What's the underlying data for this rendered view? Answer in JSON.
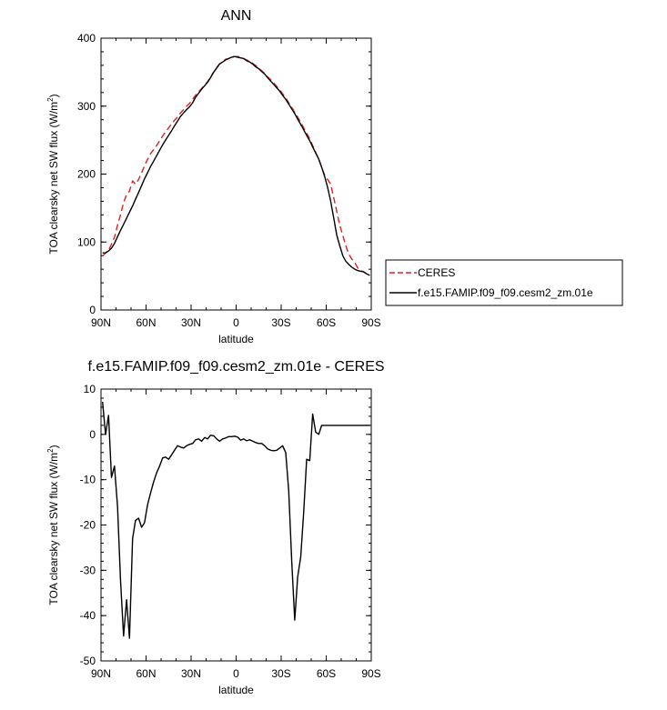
{
  "chart_data": [
    {
      "type": "line",
      "title": "ANN",
      "xlabel": "latitude",
      "ylabel_main": "TOA clearsky net SW flux (W/m",
      "ylabel_sup": "2",
      "ylabel_close": ")",
      "xlim": [
        -90,
        90
      ],
      "ylim": [
        0,
        400
      ],
      "xticks": [
        -90,
        -60,
        -30,
        0,
        30,
        60,
        90
      ],
      "xtick_labels": [
        "90N",
        "60N",
        "30N",
        "0",
        "30S",
        "60S",
        "90S"
      ],
      "yticks": [
        0,
        100,
        200,
        300,
        400
      ],
      "ytick_labels": [
        "0",
        "100",
        "200",
        "300",
        "400"
      ],
      "legend_placement": "right",
      "series": [
        {
          "name": "CERES",
          "color": "#e0201b",
          "dash": "dashed",
          "x": [
            -89,
            -87,
            -85,
            -83,
            -81,
            -79,
            -77,
            -75,
            -73,
            -71,
            -69,
            -67,
            -65,
            -63,
            -61,
            -59,
            -57,
            -55,
            -53,
            -51,
            -49,
            -47,
            -45,
            -43,
            -41,
            -39,
            -37,
            -35,
            -33,
            -31,
            -29,
            -27,
            -25,
            -23,
            -21,
            -19,
            -17,
            -15,
            -13,
            -11,
            -9,
            -7,
            -5,
            -3,
            -1,
            1,
            3,
            5,
            7,
            9,
            11,
            13,
            15,
            17,
            19,
            21,
            23,
            25,
            27,
            29,
            31,
            33,
            35,
            37,
            39,
            41,
            43,
            45,
            47,
            49,
            51,
            53,
            55,
            57,
            59,
            61,
            63,
            65,
            67,
            69,
            71,
            73,
            75,
            77,
            79,
            81,
            83,
            85,
            87,
            89
          ],
          "y": [
            79,
            84,
            88,
            97,
            107,
            125,
            140,
            158,
            170,
            175,
            190,
            185,
            192,
            202,
            212,
            222,
            230,
            236,
            242,
            249,
            256,
            262,
            268,
            274,
            279,
            284,
            290,
            295,
            300,
            304,
            310,
            316,
            321,
            326,
            331,
            336,
            343,
            350,
            357,
            362,
            365,
            369,
            370,
            372,
            373,
            373,
            372,
            370,
            368,
            366,
            363,
            360,
            356,
            352,
            348,
            343,
            339,
            334,
            329,
            324,
            318,
            312,
            305,
            298,
            291,
            284,
            276,
            268,
            260,
            252,
            242,
            232,
            222,
            210,
            198,
            192,
            185,
            165,
            145,
            125,
            110,
            95,
            82,
            75,
            70,
            62,
            58,
            56,
            53,
            51
          ]
        },
        {
          "name": "f.e15.FAMIP.f09_f09.cesm2_zm.01e",
          "color": "#000000",
          "dash": "solid",
          "x": [
            -89,
            -87,
            -85,
            -83,
            -81,
            -79,
            -77,
            -75,
            -73,
            -71,
            -69,
            -67,
            -65,
            -63,
            -61,
            -59,
            -57,
            -55,
            -53,
            -51,
            -49,
            -47,
            -45,
            -43,
            -41,
            -39,
            -37,
            -35,
            -33,
            -31,
            -29,
            -27,
            -25,
            -23,
            -21,
            -19,
            -17,
            -15,
            -13,
            -11,
            -9,
            -7,
            -5,
            -3,
            -1,
            1,
            3,
            5,
            7,
            9,
            11,
            13,
            15,
            17,
            19,
            21,
            23,
            25,
            27,
            29,
            31,
            33,
            35,
            37,
            39,
            41,
            43,
            45,
            47,
            49,
            51,
            53,
            55,
            57,
            59,
            61,
            63,
            65,
            67,
            69,
            71,
            73,
            75,
            77,
            79,
            81,
            83,
            85,
            87,
            89
          ],
          "y": [
            84,
            84,
            87,
            91,
            98,
            108,
            117,
            126,
            135,
            144,
            153,
            163,
            173,
            183,
            193,
            202,
            211,
            219,
            227,
            235,
            243,
            250,
            257,
            264,
            271,
            278,
            285,
            290,
            295,
            299,
            305,
            313,
            319,
            325,
            330,
            335,
            342,
            350,
            356,
            362,
            365,
            368,
            370,
            372,
            373,
            372,
            371,
            370,
            367,
            365,
            362,
            358,
            355,
            351,
            347,
            342,
            337,
            332,
            327,
            322,
            316,
            310,
            303,
            296,
            289,
            281,
            273,
            265,
            257,
            249,
            240,
            231,
            222,
            210,
            196,
            180,
            160,
            135,
            110,
            95,
            80,
            72,
            67,
            63,
            60,
            58,
            57,
            56,
            53,
            51
          ]
        }
      ]
    },
    {
      "type": "line",
      "title": "f.e15.FAMIP.f09_f09.cesm2_zm.01e - CERES",
      "xlabel": "latitude",
      "ylabel_main": "TOA clearsky net SW flux (W/m",
      "ylabel_sup": "2",
      "ylabel_close": ")",
      "xlim": [
        -90,
        90
      ],
      "ylim": [
        -50,
        10
      ],
      "xticks": [
        -90,
        -60,
        -30,
        0,
        30,
        60,
        90
      ],
      "xtick_labels": [
        "90N",
        "60N",
        "30N",
        "0",
        "30S",
        "60S",
        "90S"
      ],
      "yticks": [
        -50,
        -40,
        -30,
        -20,
        -10,
        0,
        10
      ],
      "ytick_labels": [
        "-50",
        "-40",
        "-30",
        "-20",
        "-10",
        "0",
        "10"
      ],
      "series": [
        {
          "color": "#000000",
          "dash": "solid",
          "x": [
            -89,
            -87,
            -85,
            -83,
            -81,
            -79,
            -77,
            -75,
            -73,
            -71,
            -69,
            -67,
            -65,
            -63,
            -61,
            -59,
            -57,
            -55,
            -53,
            -51,
            -49,
            -47,
            -45,
            -43,
            -41,
            -39,
            -37,
            -35,
            -33,
            -31,
            -29,
            -27,
            -25,
            -23,
            -21,
            -19,
            -17,
            -15,
            -13,
            -11,
            -9,
            -7,
            -5,
            -3,
            -1,
            1,
            3,
            5,
            7,
            9,
            11,
            13,
            15,
            17,
            19,
            21,
            23,
            25,
            27,
            29,
            31,
            33,
            35,
            37,
            39,
            41,
            43,
            45,
            47,
            49,
            51,
            53,
            55,
            57,
            59,
            61,
            63,
            65,
            67,
            69,
            71,
            73,
            75,
            77,
            79,
            81,
            83,
            85,
            87,
            89
          ],
          "y": [
            7.2,
            0,
            4.2,
            -9.5,
            -7.0,
            -16,
            -32,
            -44.5,
            -36.5,
            -45,
            -23,
            -19,
            -18.5,
            -20.5,
            -19.5,
            -15.5,
            -13,
            -10.5,
            -8.5,
            -7,
            -5.2,
            -5.0,
            -5.5,
            -4.5,
            -3.5,
            -2.5,
            -2.8,
            -3.0,
            -2.5,
            -2.2,
            -2.0,
            -1.2,
            -1.0,
            -1.5,
            -0.7,
            -1.0,
            -0.2,
            -0.3,
            -1.0,
            -1.5,
            -1.0,
            -0.8,
            -0.5,
            -0.5,
            -0.4,
            -0.6,
            -1.3,
            -1.0,
            -1.4,
            -1.2,
            -1.5,
            -1.8,
            -2.0,
            -2.0,
            -2.5,
            -3.2,
            -3.5,
            -3.6,
            -3.5,
            -3.0,
            -2.5,
            -4.0,
            -12.5,
            -28,
            -41,
            -31.5,
            -27,
            -17,
            -5.5,
            -5.8,
            4.5,
            0.5,
            0,
            2.0,
            2.0,
            2.0,
            2.0,
            2.0,
            2.0,
            2.0,
            2.0,
            2.0,
            2.0,
            2.0,
            2.0,
            2.0,
            2.0,
            2.0,
            2.0,
            2.0
          ]
        }
      ]
    }
  ]
}
